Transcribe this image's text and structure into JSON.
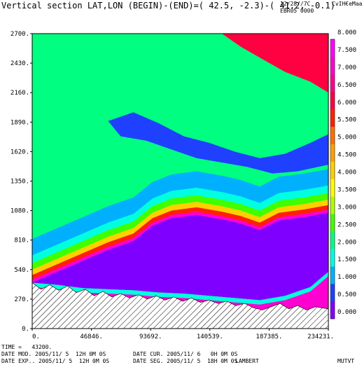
{
  "header": {
    "title": "Vertical section LAT,LON (BEGIN)-(END)=( 42.5, -2.3)-( 41.2, -0.1)",
    "run_date": "12/28//7C",
    "run_id": "EBR05 0000",
    "brand": "CvIH€eMaa"
  },
  "footer": {
    "time": "TIME =   43200.",
    "date_mod": "DATE MOD. 2005/11/ 5  12H 0M 0S",
    "date_cur": "DATE CUR. 2005/11/ 6   0H 0M 0S",
    "date_exp": "DATE EXP.. 2005/11/ 5  12H 0M 0S",
    "date_seg": "DATE SEG. 2005/11/ 5  18H 0M 0S",
    "projection": "LAMBERT",
    "variable": "MUTVT"
  },
  "chart_data": {
    "type": "heatmap",
    "xlim": [
      0,
      234231
    ],
    "ylim": [
      0,
      2700
    ],
    "x_ticks": [
      "0.",
      "46846.",
      "93692.",
      "140539.",
      "187385.",
      "234231."
    ],
    "y_ticks": [
      "0.",
      "270.",
      "540.",
      "810.",
      "1080.",
      "1350.",
      "1620.",
      "1890.",
      "2160.",
      "2430.",
      "2700."
    ],
    "colorbar": {
      "levels": [
        "0.000",
        "0.500",
        "1.000",
        "1.500",
        "2.000",
        "2.500",
        "3.000",
        "3.500",
        "4.000",
        "4.500",
        "5.000",
        "5.500",
        "6.000",
        "6.500",
        "7.000",
        "7.500",
        "8.000"
      ],
      "colors": [
        "#8000ff",
        "#2040ff",
        "#00b0ff",
        "#00ffe0",
        "#00ff80",
        "#40ff00",
        "#b0ff00",
        "#ffff00",
        "#ffd000",
        "#ffa000",
        "#ff7000",
        "#ff2000",
        "#ff0040",
        "#ff0090",
        "#ff00d0",
        "#ff00ff"
      ]
    },
    "topography": [
      [
        0,
        420
      ],
      [
        7000,
        360
      ],
      [
        14000,
        400
      ],
      [
        21000,
        350
      ],
      [
        28000,
        390
      ],
      [
        35000,
        330
      ],
      [
        42000,
        360
      ],
      [
        49000,
        300
      ],
      [
        56000,
        340
      ],
      [
        63000,
        290
      ],
      [
        70000,
        320
      ],
      [
        77000,
        280
      ],
      [
        84000,
        310
      ],
      [
        91000,
        270
      ],
      [
        98000,
        300
      ],
      [
        105000,
        260
      ],
      [
        112000,
        290
      ],
      [
        119000,
        250
      ],
      [
        126000,
        280
      ],
      [
        133000,
        240
      ],
      [
        140000,
        260
      ],
      [
        147000,
        230
      ],
      [
        154000,
        250
      ],
      [
        161000,
        210
      ],
      [
        168000,
        230
      ],
      [
        175000,
        190
      ],
      [
        182000,
        170
      ],
      [
        189000,
        200
      ],
      [
        196000,
        230
      ],
      [
        203000,
        180
      ],
      [
        210000,
        210
      ],
      [
        217000,
        170
      ],
      [
        224000,
        200
      ],
      [
        234231,
        180
      ]
    ],
    "max_layer_top": [
      [
        0,
        420
      ],
      [
        20000,
        520
      ],
      [
        40000,
        620
      ],
      [
        60000,
        720
      ],
      [
        80000,
        800
      ],
      [
        95000,
        940
      ],
      [
        110000,
        1010
      ],
      [
        130000,
        1040
      ],
      [
        150000,
        1000
      ],
      [
        165000,
        960
      ],
      [
        180000,
        900
      ],
      [
        195000,
        990
      ],
      [
        215000,
        1020
      ],
      [
        234231,
        1060
      ]
    ],
    "max_layer_bottom": [
      [
        0,
        420
      ],
      [
        20000,
        400
      ],
      [
        40000,
        370
      ],
      [
        60000,
        360
      ],
      [
        80000,
        350
      ],
      [
        100000,
        330
      ],
      [
        120000,
        320
      ],
      [
        140000,
        300
      ],
      [
        160000,
        280
      ],
      [
        180000,
        260
      ],
      [
        200000,
        300
      ],
      [
        220000,
        380
      ],
      [
        234231,
        520
      ]
    ],
    "bands_above_max": [
      {
        "level": "7.000",
        "offset": 30
      },
      {
        "level": "5.500",
        "offset": 70
      },
      {
        "level": "4.000",
        "offset": 120
      },
      {
        "level": "2.500",
        "offset": 180
      },
      {
        "level": "1.500",
        "offset": 250
      },
      {
        "level": "1.000",
        "offset": 400
      }
    ],
    "low_core": [
      [
        60000,
        1900
      ],
      [
        80000,
        1980
      ],
      [
        100000,
        1880
      ],
      [
        120000,
        1760
      ],
      [
        140000,
        1700
      ],
      [
        160000,
        1620
      ],
      [
        180000,
        1560
      ],
      [
        200000,
        1600
      ],
      [
        220000,
        1700
      ],
      [
        234231,
        1780
      ],
      [
        234231,
        1500
      ],
      [
        210000,
        1440
      ],
      [
        190000,
        1420
      ],
      [
        170000,
        1480
      ],
      [
        150000,
        1520
      ],
      [
        130000,
        1560
      ],
      [
        110000,
        1640
      ],
      [
        90000,
        1720
      ],
      [
        70000,
        1760
      ]
    ],
    "upper_warm": [
      [
        150000,
        2700
      ],
      [
        234231,
        2700
      ],
      [
        234231,
        2160
      ],
      [
        220000,
        2260
      ],
      [
        200000,
        2350
      ],
      [
        180000,
        2480
      ],
      [
        165000,
        2580
      ]
    ]
  }
}
